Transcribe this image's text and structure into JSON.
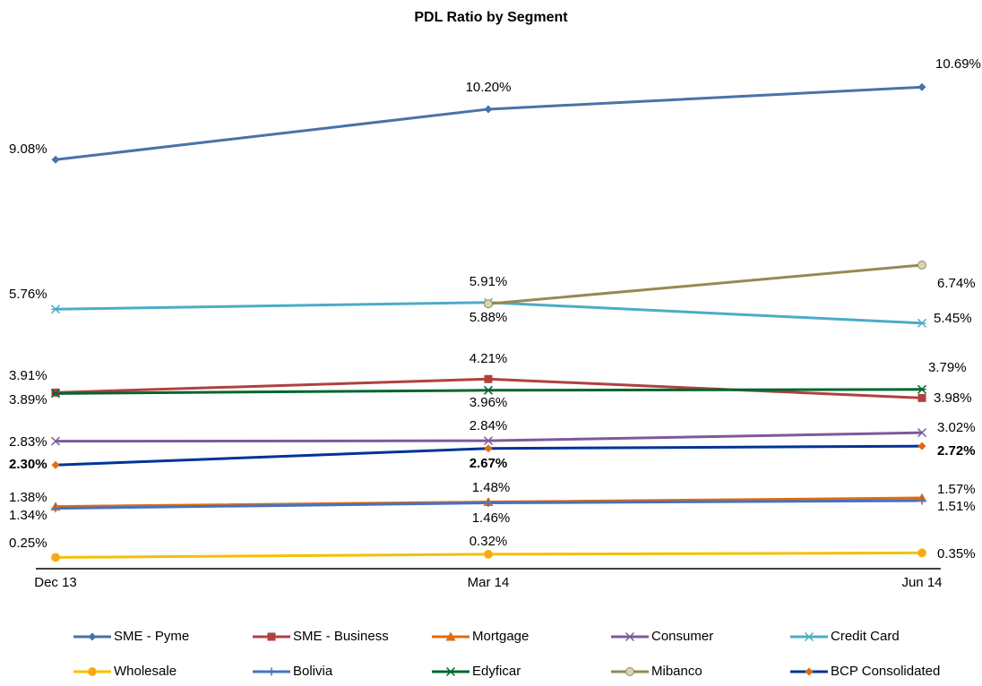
{
  "chart_data": {
    "type": "line",
    "title": "PDL Ratio by Segment",
    "categories": [
      "Dec 13",
      "Mar 14",
      "Jun 14"
    ],
    "series": [
      {
        "name": "SME - Pyme",
        "color": "#4a72a8",
        "marker": "diamond",
        "values": [
          9.08,
          10.2,
          10.69
        ],
        "value_labels": [
          "9.08%",
          "10.20%",
          "10.69%"
        ]
      },
      {
        "name": "SME - Business",
        "color": "#b0413e",
        "marker": "square",
        "values": [
          3.91,
          4.21,
          3.79
        ],
        "value_labels": [
          "3.91%",
          "4.21%",
          "3.79%"
        ]
      },
      {
        "name": "Mortgage",
        "color": "#e36c09",
        "marker": "triangle",
        "values": [
          1.38,
          1.48,
          1.57
        ],
        "value_labels": [
          "1.38%",
          "1.48%",
          "1.57%"
        ]
      },
      {
        "name": "Consumer",
        "color": "#7d5a9b",
        "marker": "x",
        "values": [
          2.83,
          2.84,
          3.02
        ],
        "value_labels": [
          "2.83%",
          "2.84%",
          "3.02%"
        ]
      },
      {
        "name": "Credit Card",
        "color": "#4bacc6",
        "marker": "star",
        "values": [
          5.76,
          5.91,
          5.45
        ],
        "value_labels": [
          "5.76%",
          "5.91%",
          "5.45%"
        ]
      },
      {
        "name": "Wholesale",
        "color": "#f5c000",
        "marker": "circle",
        "marker_color": "#f7a520",
        "values": [
          0.25,
          0.32,
          0.35
        ],
        "value_labels": [
          "0.25%",
          "0.32%",
          "0.35%"
        ]
      },
      {
        "name": "Bolivia",
        "color": "#4472c4",
        "marker": "plus",
        "values": [
          1.34,
          1.46,
          1.51
        ],
        "value_labels": [
          "1.34%",
          "1.46%",
          "1.51%"
        ]
      },
      {
        "name": "Edyficar",
        "color": "#00662e",
        "marker": "star",
        "values": [
          3.89,
          3.96,
          3.98
        ],
        "value_labels": [
          "3.89%",
          "3.96%",
          "3.98%"
        ]
      },
      {
        "name": "Mibanco",
        "color": "#948a54",
        "marker": "circle",
        "marker_color": "#d8d4b8",
        "values": [
          null,
          5.88,
          6.74
        ],
        "value_labels": [
          null,
          "5.88%",
          "6.74%"
        ]
      },
      {
        "name": "BCP Consolidated",
        "color": "#003399",
        "marker": "diamond",
        "marker_color": "#e46c0a",
        "bold": true,
        "values": [
          2.3,
          2.67,
          2.72
        ],
        "value_labels": [
          "2.30%",
          "2.67%",
          "2.72%"
        ]
      }
    ]
  }
}
